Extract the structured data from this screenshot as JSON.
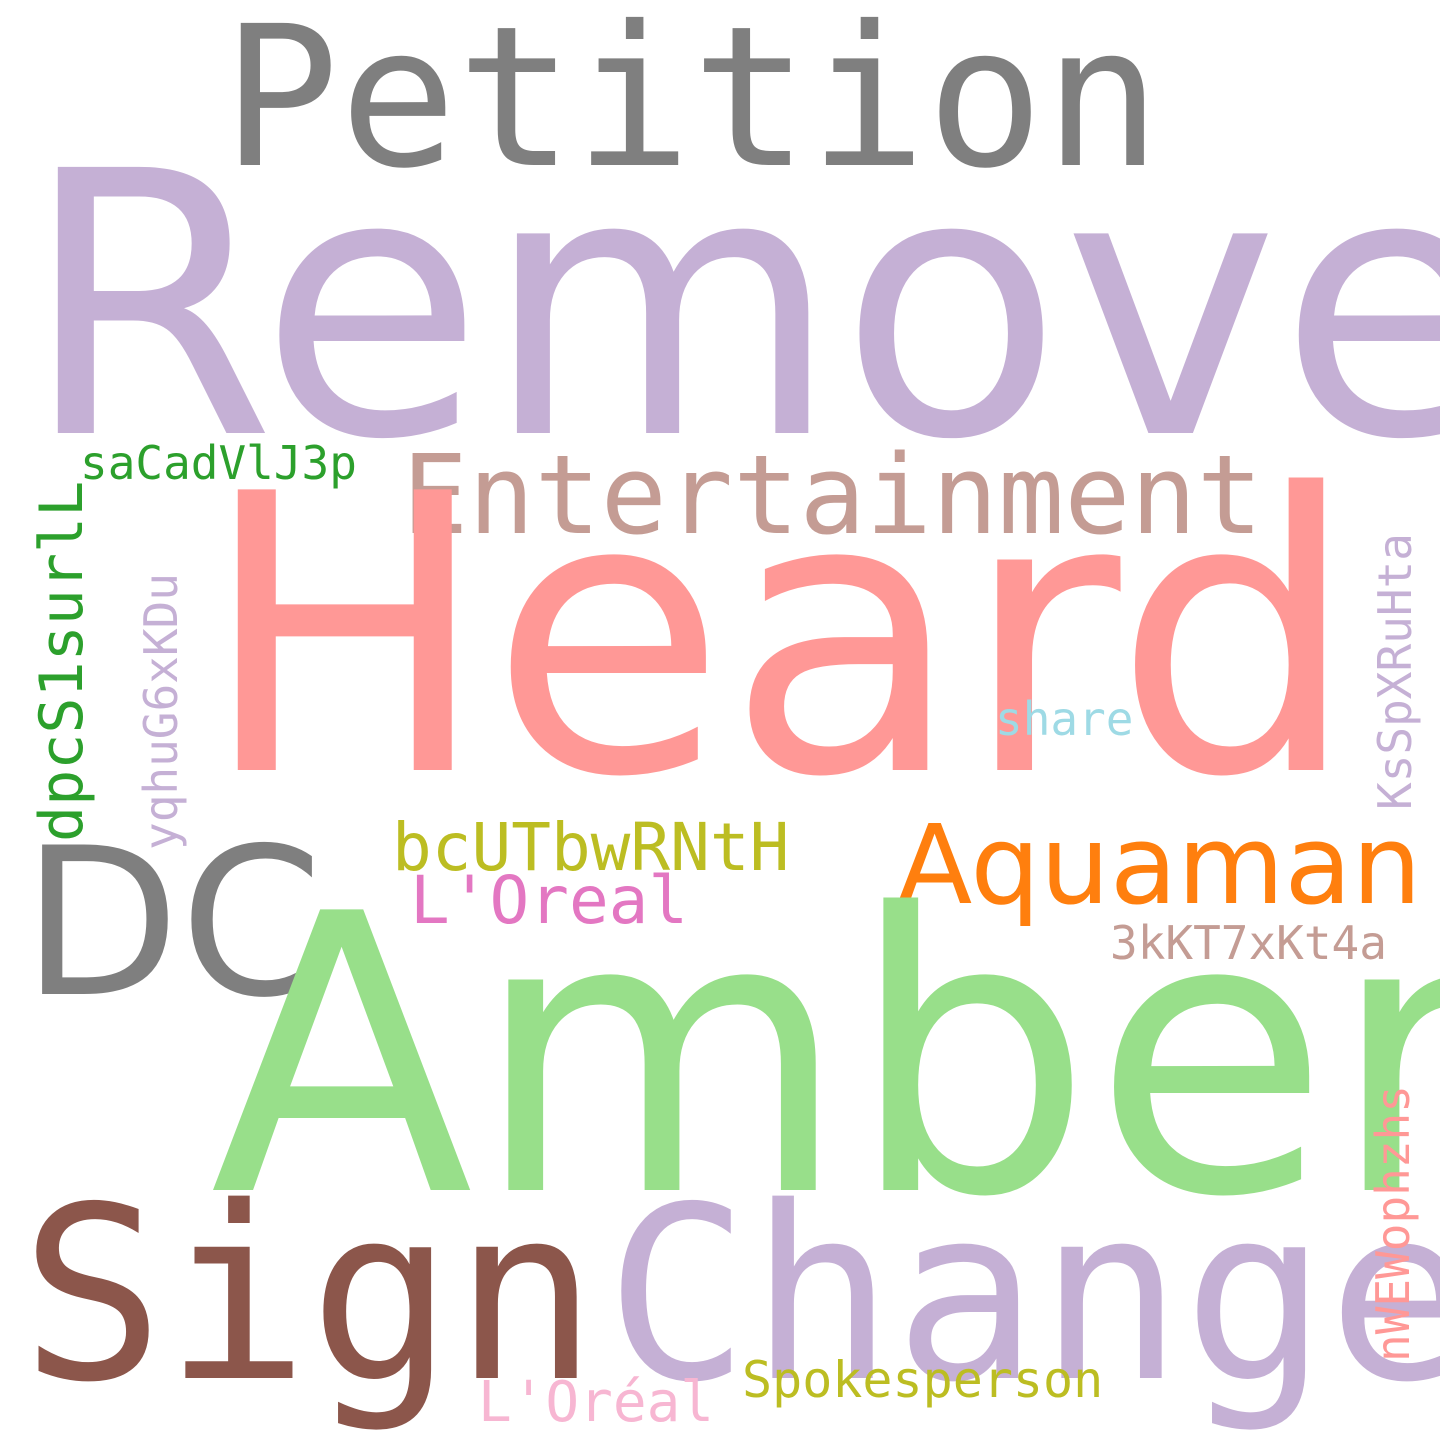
{
  "words": {
    "petition": "Petition",
    "remove": "Remove",
    "sacadvlj3p": "saCadVlJ3p",
    "entertainment": "Entertainment",
    "heard": "Heard",
    "share": "share",
    "dpcs1surll": "dpcS1surlL",
    "yqhug6xkdu": "yqhuG6xKDu",
    "ksspxruhta": "KsSpXRuHta",
    "dc": "DC",
    "bcutbwrnth": "bcUTbwRNtH",
    "aquaman": "Aquaman",
    "loreal": "L'Oreal",
    "3kkt7xkt4a": "3kKT7xKt4a",
    "amber": "Amber",
    "nwewophzhs": "nWEWophzhs",
    "sign": "Sign",
    "change": "Change",
    "spokesperson": "Spokesperson",
    "loreal_accent": "L'Oréal"
  },
  "colors": {
    "gray": "#7f7f7f",
    "lavender": "#c5b0d5",
    "salmon": "#ff9896",
    "green_dark": "#2ca02c",
    "green_light": "#98df8a",
    "taupe": "#c49c94",
    "olive": "#bcbd22",
    "orange": "#ff7f0e",
    "pink": "#e377c2",
    "pink_light": "#f7b6d2",
    "brown": "#8c564b",
    "light_blue": "#9edae5"
  }
}
